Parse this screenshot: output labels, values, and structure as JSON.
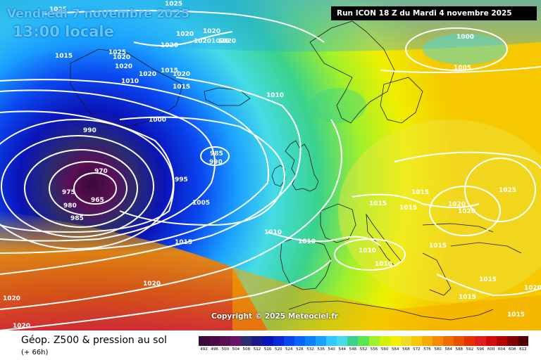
{
  "map": {
    "valid_date": "Vendredi 7 novembre 2025",
    "valid_time": "13:00 locale",
    "run_info": "Run ICON 18 Z du Mardi 4 novembre 2025",
    "copyright": "Copyright © 2025 Meteociel.fr"
  },
  "footer": {
    "title": "Géop. Z500 & pression au sol",
    "subtitle": "(+ 66h)"
  },
  "legend": {
    "values": [
      "492",
      "496",
      "500",
      "504",
      "508",
      "512",
      "516",
      "520",
      "524",
      "528",
      "532",
      "536",
      "540",
      "544",
      "548",
      "552",
      "556",
      "560",
      "564",
      "568",
      "572",
      "576",
      "580",
      "584",
      "588",
      "592",
      "596",
      "600",
      "604",
      "608",
      "612"
    ],
    "colors": [
      "#3a0a3a",
      "#4a0a4a",
      "#5a0f55",
      "#6a1466",
      "#2b2b6e",
      "#1a1a8a",
      "#0a14b8",
      "#0a28d8",
      "#0a46f0",
      "#0a64ff",
      "#0a82ff",
      "#1aa0ff",
      "#32c8ff",
      "#46dce6",
      "#3ad28c",
      "#5ae650",
      "#a0f02a",
      "#d2f00a",
      "#f0f000",
      "#f0dc28",
      "#f5c800",
      "#f5aa00",
      "#f58c00",
      "#f06e00",
      "#eb5000",
      "#e63200",
      "#e11e1e",
      "#d20a0a",
      "#b40000",
      "#820000",
      "#500000"
    ]
  },
  "isobars": {
    "labels": [
      "1025",
      "1025",
      "1020",
      "1020",
      "1020",
      "1020",
      "1020",
      "1020",
      "1015",
      "1025",
      "1020",
      "1020",
      "1020",
      "1015",
      "1015",
      "1010",
      "1020",
      "1010",
      "1000",
      "990",
      "985",
      "990",
      "995",
      "970",
      "975",
      "965",
      "980",
      "985",
      "1005",
      "1015",
      "1010",
      "1010",
      "1000",
      "1005",
      "1015",
      "1015",
      "1015",
      "1025",
      "1020",
      "1020",
      "1010",
      "1010",
      "1015",
      "1020",
      "1015",
      "1015",
      "1015",
      "1020",
      "1020",
      "1020"
    ]
  }
}
